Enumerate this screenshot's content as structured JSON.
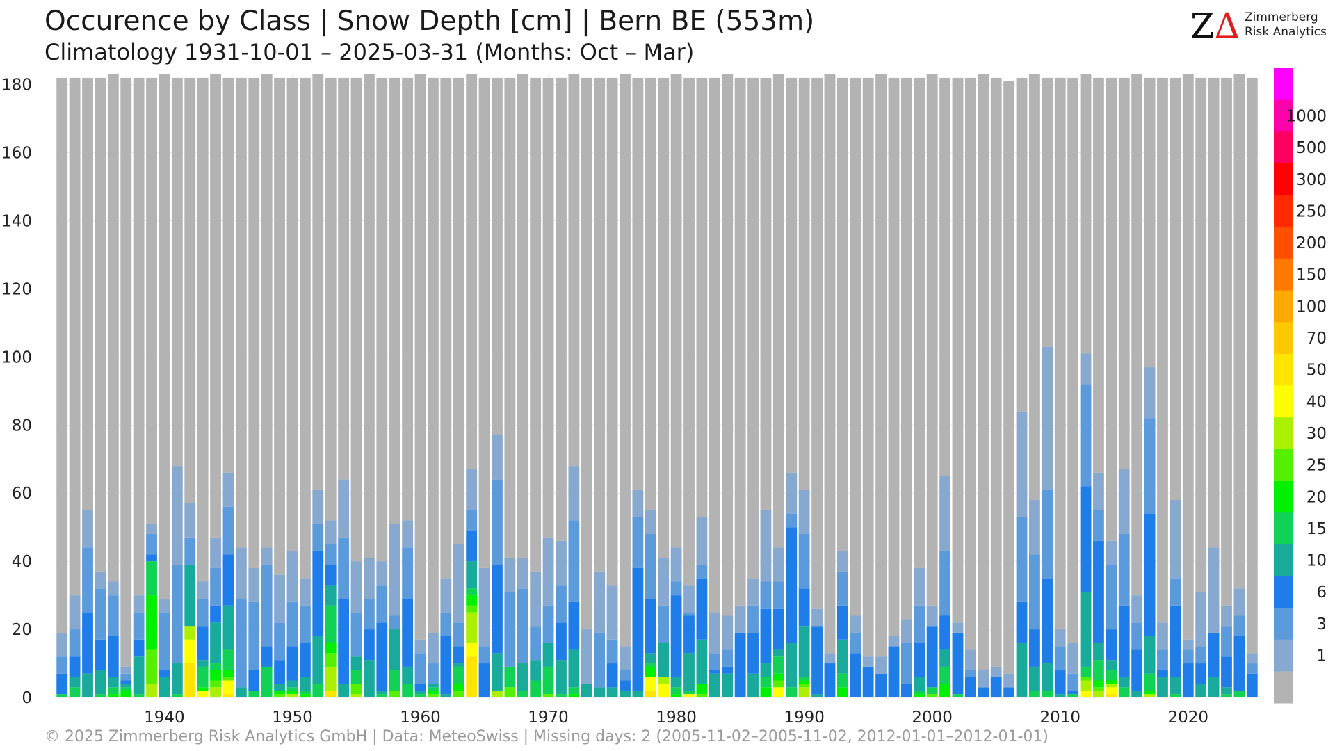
{
  "header": {
    "title": "Occurence by Class | Snow Depth [cm] | Bern  BE (553m)",
    "subtitle": "Climatology 1931-10-01 – 2025-03-31 (Months: Oct – Mar)"
  },
  "logo": {
    "mark_z": "Z",
    "mark_delta": "Δ",
    "line1": "Zimmerberg",
    "line2": "Risk Analytics"
  },
  "footer": "©  2025 Zimmerberg Risk Analytics GmbH | Data: MeteoSwiss | Missing days: 2 (2005-11-02–2005-11-02, 2012-01-01–2012-01-01)",
  "chart_data": {
    "type": "bar",
    "stacked": true,
    "xlabel": "",
    "ylabel": "",
    "ylim": [
      0,
      183
    ],
    "yticks": [
      0,
      20,
      40,
      60,
      80,
      100,
      120,
      140,
      160,
      180
    ],
    "xticks": [
      1940,
      1950,
      1960,
      1970,
      1980,
      1990,
      2000,
      2010,
      2020
    ],
    "grid": true,
    "legend": {
      "placement": "right colorbar",
      "classes": [
        {
          "label": "",
          "color": "#b3b3b3"
        },
        {
          "label": "1",
          "color": "#88a9cf"
        },
        {
          "label": "3",
          "color": "#5b9bdb"
        },
        {
          "label": "6",
          "color": "#1e7de8"
        },
        {
          "label": "10",
          "color": "#18aa9a"
        },
        {
          "label": "15",
          "color": "#12d255"
        },
        {
          "label": "20",
          "color": "#00f000"
        },
        {
          "label": "25",
          "color": "#55f000"
        },
        {
          "label": "30",
          "color": "#aaf000"
        },
        {
          "label": "40",
          "color": "#ffff00"
        },
        {
          "label": "50",
          "color": "#ffe400"
        },
        {
          "label": "70",
          "color": "#ffc800"
        },
        {
          "label": "100",
          "color": "#ffa800"
        },
        {
          "label": "150",
          "color": "#ff7800"
        },
        {
          "label": "200",
          "color": "#ff5000"
        },
        {
          "label": "250",
          "color": "#ff2a00"
        },
        {
          "label": "300",
          "color": "#ff0000"
        },
        {
          "label": "500",
          "color": "#ff0060"
        },
        {
          "label": "1000",
          "color": "#ff00aa"
        },
        {
          "label": "",
          "color": "#ff00ff"
        }
      ]
    },
    "series_colors": [
      "#88a9cf",
      "#5b9bdb",
      "#1e7de8",
      "#18aa9a",
      "#12d255",
      "#00f000",
      "#55f000",
      "#aaf000",
      "#ffff00",
      "#ffe400",
      "#b3b3b3"
    ],
    "series_labels": [
      "1",
      "3",
      "6",
      "10",
      "15",
      "20",
      "25",
      "30",
      "40",
      "50",
      "0"
    ],
    "years": [
      1932,
      1933,
      1934,
      1935,
      1936,
      1937,
      1938,
      1939,
      1940,
      1941,
      1942,
      1943,
      1944,
      1945,
      1946,
      1947,
      1948,
      1949,
      1950,
      1951,
      1952,
      1953,
      1954,
      1955,
      1956,
      1957,
      1958,
      1959,
      1960,
      1961,
      1962,
      1963,
      1964,
      1965,
      1966,
      1967,
      1968,
      1969,
      1970,
      1971,
      1972,
      1973,
      1974,
      1975,
      1976,
      1977,
      1978,
      1979,
      1980,
      1981,
      1982,
      1983,
      1984,
      1985,
      1986,
      1987,
      1988,
      1989,
      1990,
      1991,
      1992,
      1993,
      1994,
      1995,
      1996,
      1997,
      1998,
      1999,
      2000,
      2001,
      2002,
      2003,
      2004,
      2005,
      2006,
      2007,
      2008,
      2009,
      2010,
      2011,
      2012,
      2013,
      2014,
      2015,
      2016,
      2017,
      2018,
      2019,
      2020,
      2021,
      2022,
      2023,
      2024,
      2025
    ],
    "totals": [
      182,
      182,
      182,
      182,
      183,
      182,
      182,
      182,
      183,
      182,
      182,
      182,
      183,
      182,
      182,
      182,
      183,
      182,
      182,
      182,
      183,
      182,
      182,
      182,
      183,
      182,
      182,
      182,
      183,
      182,
      182,
      182,
      183,
      182,
      182,
      182,
      183,
      182,
      182,
      182,
      183,
      182,
      182,
      182,
      183,
      182,
      182,
      182,
      183,
      182,
      182,
      182,
      183,
      182,
      182,
      182,
      183,
      182,
      182,
      182,
      183,
      182,
      182,
      182,
      183,
      182,
      182,
      182,
      183,
      182,
      182,
      182,
      183,
      182,
      181,
      182,
      183,
      182,
      182,
      182,
      183,
      182,
      182,
      182,
      183,
      182,
      182,
      182,
      183,
      182,
      182,
      182,
      183,
      182
    ],
    "snow_days_by_class": [
      [
        7,
        5,
        6,
        0,
        1,
        0,
        0,
        0,
        0,
        0,
        0
      ],
      [
        10,
        8,
        6,
        3,
        3,
        0,
        0,
        0,
        0,
        0,
        0
      ],
      [
        11,
        19,
        18,
        7,
        0,
        0,
        0,
        0,
        0,
        0,
        0
      ],
      [
        5,
        15,
        9,
        7,
        1,
        0,
        0,
        0,
        0,
        0,
        0
      ],
      [
        4,
        12,
        12,
        3,
        2,
        1,
        0,
        0,
        0,
        0,
        0
      ],
      [
        2,
        2,
        1,
        1,
        1,
        2,
        0,
        0,
        0,
        0,
        0
      ],
      [
        5,
        8,
        5,
        11,
        1,
        0,
        0,
        0,
        0,
        0,
        0
      ],
      [
        3,
        6,
        2,
        0,
        10,
        16,
        10,
        4,
        0,
        0,
        0
      ],
      [
        4,
        17,
        2,
        6,
        0,
        0,
        0,
        0,
        0,
        0,
        0
      ],
      [
        29,
        29,
        0,
        9,
        1,
        0,
        0,
        0,
        0,
        0,
        0
      ],
      [
        10,
        8,
        0,
        18,
        0,
        0,
        0,
        4,
        7,
        10,
        0
      ],
      [
        5,
        8,
        10,
        2,
        6,
        1,
        0,
        0,
        2,
        0,
        0
      ],
      [
        9,
        11,
        5,
        12,
        2,
        3,
        2,
        3,
        0,
        0,
        0
      ],
      [
        10,
        14,
        15,
        13,
        6,
        2,
        1,
        0,
        4,
        1,
        0
      ],
      [
        15,
        26,
        0,
        3,
        0,
        0,
        0,
        0,
        0,
        0,
        0
      ],
      [
        10,
        20,
        6,
        0,
        2,
        0,
        0,
        0,
        0,
        0,
        0
      ],
      [
        5,
        24,
        6,
        0,
        9,
        0,
        0,
        0,
        0,
        0,
        0
      ],
      [
        14,
        11,
        7,
        2,
        0,
        1,
        1,
        0,
        0,
        0,
        0
      ],
      [
        15,
        13,
        10,
        2,
        1,
        1,
        0,
        1,
        0,
        0,
        0
      ],
      [
        8,
        11,
        10,
        4,
        1,
        1,
        0,
        0,
        0,
        0,
        0
      ],
      [
        10,
        8,
        25,
        14,
        4,
        0,
        0,
        0,
        0,
        0,
        0
      ],
      [
        7,
        6,
        6,
        6,
        11,
        3,
        4,
        7,
        0,
        2,
        0
      ],
      [
        17,
        18,
        25,
        4,
        0,
        0,
        0,
        0,
        0,
        0,
        0
      ],
      [
        15,
        13,
        0,
        4,
        4,
        0,
        3,
        1,
        0,
        0,
        0
      ],
      [
        12,
        9,
        9,
        11,
        0,
        0,
        0,
        0,
        0,
        0,
        0
      ],
      [
        7,
        11,
        20,
        1,
        1,
        0,
        0,
        0,
        0,
        0,
        0
      ],
      [
        27,
        4,
        0,
        12,
        6,
        0,
        2,
        0,
        0,
        0,
        0
      ],
      [
        8,
        15,
        20,
        5,
        4,
        0,
        0,
        0,
        0,
        0,
        0
      ],
      [
        4,
        9,
        2,
        1,
        1,
        0,
        0,
        0,
        0,
        0,
        0
      ],
      [
        9,
        6,
        0,
        1,
        1,
        1,
        1,
        0,
        0,
        0,
        0
      ],
      [
        10,
        7,
        17,
        1,
        0,
        0,
        0,
        0,
        0,
        0,
        0
      ],
      [
        23,
        7,
        5,
        1,
        5,
        2,
        2,
        0,
        0,
        0,
        0
      ],
      [
        12,
        6,
        9,
        8,
        2,
        3,
        2,
        9,
        4,
        12,
        0
      ],
      [
        23,
        5,
        10,
        0,
        0,
        0,
        0,
        0,
        0,
        0,
        0
      ],
      [
        13,
        25,
        26,
        11,
        0,
        0,
        0,
        2,
        0,
        0,
        0
      ],
      [
        10,
        22,
        0,
        0,
        6,
        0,
        3,
        0,
        0,
        0,
        0
      ],
      [
        9,
        22,
        0,
        8,
        2,
        0,
        0,
        0,
        0,
        0,
        0
      ],
      [
        16,
        10,
        0,
        6,
        5,
        0,
        0,
        0,
        0,
        0,
        0
      ],
      [
        20,
        11,
        0,
        7,
        8,
        0,
        1,
        0,
        0,
        0,
        0
      ],
      [
        13,
        11,
        11,
        10,
        1,
        0,
        0,
        0,
        0,
        0,
        0
      ],
      [
        16,
        24,
        14,
        11,
        2,
        1,
        0,
        0,
        0,
        0,
        0
      ],
      [
        16,
        0,
        0,
        4,
        0,
        0,
        0,
        0,
        0,
        0,
        0
      ],
      [
        18,
        16,
        0,
        3,
        0,
        0,
        0,
        0,
        0,
        0,
        0
      ],
      [
        16,
        7,
        7,
        3,
        0,
        0,
        0,
        0,
        0,
        0,
        0
      ],
      [
        7,
        3,
        3,
        2,
        0,
        0,
        0,
        0,
        0,
        0,
        0
      ],
      [
        8,
        15,
        36,
        2,
        0,
        0,
        0,
        0,
        0,
        0,
        0
      ],
      [
        7,
        19,
        16,
        3,
        1,
        3,
        0,
        0,
        4,
        2,
        0
      ],
      [
        14,
        11,
        0,
        10,
        0,
        0,
        0,
        2,
        4,
        0,
        0
      ],
      [
        10,
        4,
        24,
        3,
        2,
        1,
        0,
        0,
        0,
        0,
        0
      ],
      [
        8,
        1,
        11,
        11,
        1,
        0,
        0,
        0,
        1,
        0,
        0
      ],
      [
        14,
        4,
        18,
        13,
        0,
        3,
        1,
        0,
        0,
        0,
        0
      ],
      [
        12,
        5,
        1,
        7,
        0,
        0,
        0,
        0,
        0,
        0,
        0
      ],
      [
        10,
        5,
        2,
        7,
        0,
        0,
        0,
        0,
        0,
        0,
        0
      ],
      [
        8,
        0,
        19,
        0,
        0,
        0,
        0,
        0,
        0,
        0,
        0
      ],
      [
        8,
        8,
        12,
        7,
        0,
        0,
        0,
        0,
        0,
        0,
        0
      ],
      [
        21,
        8,
        16,
        4,
        3,
        3,
        0,
        0,
        0,
        0,
        0
      ],
      [
        10,
        8,
        12,
        2,
        5,
        2,
        2,
        0,
        3,
        0,
        0
      ],
      [
        12,
        4,
        34,
        13,
        3,
        0,
        0,
        0,
        0,
        0,
        0
      ],
      [
        13,
        16,
        11,
        15,
        1,
        1,
        1,
        3,
        0,
        0,
        0
      ],
      [
        5,
        0,
        20,
        1,
        0,
        0,
        0,
        0,
        0,
        0,
        0
      ],
      [
        3,
        0,
        10,
        0,
        0,
        0,
        0,
        0,
        0,
        0,
        0
      ],
      [
        6,
        10,
        10,
        10,
        4,
        3,
        0,
        0,
        0,
        0,
        0
      ],
      [
        5,
        6,
        13,
        0,
        0,
        0,
        0,
        0,
        0,
        0,
        0
      ],
      [
        3,
        0,
        9,
        0,
        0,
        0,
        0,
        0,
        0,
        0,
        0
      ],
      [
        5,
        0,
        7,
        0,
        0,
        0,
        0,
        0,
        0,
        0,
        0
      ],
      [
        3,
        0,
        15,
        0,
        0,
        0,
        0,
        0,
        0,
        0,
        0
      ],
      [
        7,
        12,
        4,
        0,
        0,
        0,
        0,
        0,
        0,
        0,
        0
      ],
      [
        11,
        11,
        10,
        4,
        1,
        1,
        0,
        0,
        0,
        0,
        0
      ],
      [
        6,
        0,
        18,
        0,
        2,
        0,
        1,
        0,
        0,
        0,
        0
      ],
      [
        22,
        19,
        10,
        5,
        5,
        4,
        0,
        0,
        0,
        0,
        0
      ],
      [
        3,
        0,
        18,
        0,
        1,
        0,
        0,
        0,
        0,
        0,
        0
      ],
      [
        6,
        2,
        6,
        0,
        0,
        0,
        0,
        0,
        0,
        0,
        0
      ],
      [
        5,
        0,
        3,
        0,
        0,
        0,
        0,
        0,
        0,
        0,
        0
      ],
      [
        3,
        0,
        6,
        0,
        0,
        0,
        0,
        0,
        0,
        0,
        0
      ],
      [
        4,
        0,
        3,
        0,
        0,
        0,
        0,
        0,
        0,
        0,
        0
      ],
      [
        31,
        25,
        12,
        16,
        0,
        0,
        0,
        0,
        0,
        0,
        0
      ],
      [
        16,
        22,
        11,
        7,
        2,
        0,
        0,
        0,
        0,
        0,
        0
      ],
      [
        42,
        26,
        25,
        8,
        2,
        0,
        0,
        0,
        0,
        0,
        0
      ],
      [
        5,
        7,
        7,
        1,
        0,
        0,
        0,
        0,
        0,
        0,
        0
      ],
      [
        9,
        5,
        1,
        0,
        1,
        0,
        0,
        0,
        0,
        0,
        0
      ],
      [
        9,
        30,
        31,
        22,
        3,
        0,
        1,
        3,
        2,
        0,
        0
      ],
      [
        11,
        9,
        30,
        5,
        6,
        2,
        1,
        2,
        0,
        0,
        0
      ],
      [
        7,
        19,
        9,
        3,
        3,
        1,
        0,
        1,
        2,
        1,
        0
      ],
      [
        19,
        21,
        21,
        3,
        3,
        0,
        0,
        0,
        0,
        0,
        0
      ],
      [
        8,
        8,
        12,
        2,
        0,
        0,
        0,
        0,
        0,
        0,
        0
      ],
      [
        15,
        28,
        36,
        11,
        5,
        1,
        0,
        1,
        0,
        0,
        0
      ],
      [
        8,
        6,
        2,
        6,
        0,
        0,
        0,
        0,
        0,
        0,
        0
      ],
      [
        23,
        8,
        21,
        5,
        1,
        0,
        0,
        0,
        0,
        0,
        0
      ],
      [
        3,
        4,
        10,
        0,
        0,
        0,
        0,
        0,
        0,
        0,
        0
      ],
      [
        16,
        5,
        6,
        4,
        0,
        0,
        0,
        0,
        0,
        0,
        0
      ],
      [
        25,
        0,
        13,
        6,
        0,
        0,
        0,
        0,
        0,
        0,
        0
      ],
      [
        6,
        9,
        9,
        2,
        1,
        0,
        0,
        0,
        0,
        0,
        0
      ],
      [
        8,
        6,
        16,
        0,
        2,
        0,
        0,
        0,
        0,
        0,
        0
      ],
      [
        3,
        3,
        7,
        0,
        0,
        0,
        0,
        0,
        0,
        0,
        0
      ]
    ]
  }
}
